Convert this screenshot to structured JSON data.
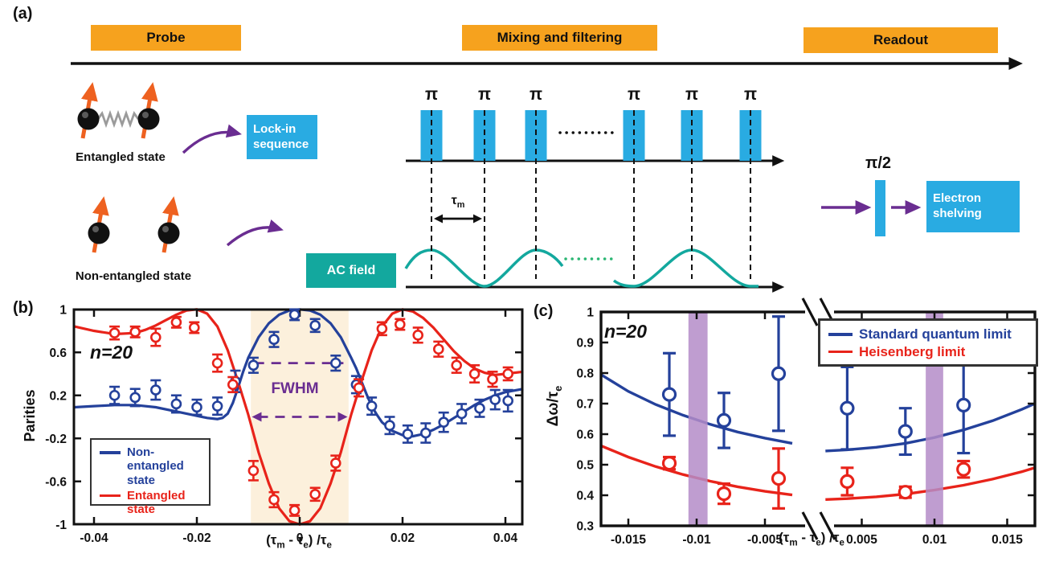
{
  "panel_a": {
    "label": "(a)",
    "stages": [
      "Probe",
      "Mixing and filtering",
      "Readout"
    ],
    "entangled_label": "Entangled state",
    "non_entangled_label": "Non-entangled state",
    "lockin_label": "Lock-in sequence",
    "ac_label": "AC field",
    "electron_label": "Electron shelving",
    "pi": "π",
    "pi_half": "π/2",
    "tau": "τ",
    "tau_sub": "m",
    "colors": {
      "stage_box": "#F6A21E",
      "pulse_blue": "#29ABE2",
      "ac_teal": "#13A89E",
      "arrow_purple": "#6A2D91",
      "spin_orange": "#EE6120",
      "dots_green": "#2BB673"
    }
  },
  "shared_x_axis_label_parts": {
    "p1": "(τ",
    "s1": "m",
    "p2": " - τ",
    "s2": "e",
    "p3": ") /τ",
    "s3": "e"
  },
  "chart_data": [
    {
      "panel": "(b)",
      "type": "line",
      "ylabel": "Parities",
      "annotation": "n=20",
      "grid": false,
      "legend_position": "lower-left",
      "xlim": [
        -0.0438,
        0.0435
      ],
      "ylim": [
        -1,
        1
      ],
      "xticks": [
        -0.04,
        -0.02,
        0,
        0.02,
        0.04
      ],
      "yticks": [
        1,
        0.6,
        0.2,
        -0.2,
        -0.6,
        -1
      ],
      "shaded_region": {
        "x": [
          -0.0095,
          0.0095
        ],
        "color": "#FCF0DC"
      },
      "fwhm": {
        "label": "FWHM",
        "color": "#6A2D91",
        "half_max_line": {
          "y": 0.5,
          "x": [
            -0.0088,
            0.0085
          ]
        },
        "width_arrow": {
          "y": 0,
          "x": [
            -0.0093,
            0.0093
          ]
        }
      },
      "series": [
        {
          "name": "Non-entangled state",
          "color": "#24419B",
          "curve": {
            "x": [
              -0.0438,
              -0.04,
              -0.036,
              -0.032,
              -0.028,
              -0.024,
              -0.02,
              -0.018,
              -0.016,
              -0.015,
              -0.014,
              -0.013,
              -0.012,
              -0.011,
              -0.01,
              -0.008,
              -0.006,
              -0.004,
              -0.002,
              0,
              0.002,
              0.004,
              0.006,
              0.008,
              0.01,
              0.011,
              0.012,
              0.013,
              0.014,
              0.015,
              0.016,
              0.018,
              0.02,
              0.022,
              0.024,
              0.026,
              0.028,
              0.03,
              0.032,
              0.034,
              0.036,
              0.038,
              0.04,
              0.0435
            ],
            "y": [
              0.09,
              0.1,
              0.11,
              0.11,
              0.09,
              0.05,
              0.01,
              -0.01,
              -0.02,
              -0.01,
              0.03,
              0.13,
              0.27,
              0.42,
              0.55,
              0.74,
              0.87,
              0.95,
              0.99,
              1,
              0.99,
              0.95,
              0.87,
              0.74,
              0.55,
              0.45,
              0.33,
              0.21,
              0.1,
              0.02,
              -0.05,
              -0.13,
              -0.17,
              -0.18,
              -0.16,
              -0.12,
              -0.07,
              -0.01,
              0.05,
              0.11,
              0.16,
              0.2,
              0.23,
              0.26
            ]
          },
          "points": {
            "x": [
              -0.036,
              -0.032,
              -0.028,
              -0.024,
              -0.02,
              -0.016,
              -0.0125,
              -0.009,
              -0.005,
              -0.001,
              0.003,
              0.007,
              0.011,
              0.014,
              0.0175,
              0.021,
              0.0245,
              0.028,
              0.0315,
              0.035,
              0.038,
              0.0405
            ],
            "y": [
              0.2,
              0.18,
              0.25,
              0.12,
              0.09,
              0.1,
              0.33,
              0.48,
              0.72,
              0.95,
              0.85,
              0.5,
              0.3,
              0.1,
              -0.08,
              -0.16,
              -0.15,
              -0.05,
              0.03,
              0.08,
              0.16,
              0.15
            ],
            "err": [
              0.08,
              0.08,
              0.09,
              0.08,
              0.07,
              0.08,
              0.1,
              0.07,
              0.07,
              0.05,
              0.06,
              0.07,
              0.08,
              0.08,
              0.08,
              0.08,
              0.09,
              0.09,
              0.09,
              0.08,
              0.09,
              0.1
            ]
          }
        },
        {
          "name": "Entangled state",
          "color": "#E8231A",
          "curve": {
            "x": [
              -0.0438,
              -0.04,
              -0.036,
              -0.032,
              -0.03,
              -0.028,
              -0.026,
              -0.024,
              -0.022,
              -0.02,
              -0.018,
              -0.016,
              -0.014,
              -0.012,
              -0.01,
              -0.008,
              -0.006,
              -0.004,
              -0.002,
              0,
              0.002,
              0.004,
              0.006,
              0.008,
              0.01,
              0.012,
              0.014,
              0.016,
              0.018,
              0.02,
              0.022,
              0.024,
              0.026,
              0.028,
              0.03,
              0.032,
              0.034,
              0.036,
              0.038,
              0.04,
              0.0435
            ],
            "y": [
              0.84,
              0.8,
              0.77,
              0.78,
              0.81,
              0.85,
              0.9,
              0.95,
              0.99,
              1,
              0.96,
              0.84,
              0.62,
              0.33,
              0.02,
              -0.33,
              -0.62,
              -0.85,
              -0.97,
              -1,
              -0.97,
              -0.85,
              -0.62,
              -0.33,
              0.02,
              0.33,
              0.62,
              0.84,
              0.96,
              1,
              0.98,
              0.92,
              0.83,
              0.72,
              0.61,
              0.52,
              0.45,
              0.41,
              0.39,
              0.4,
              0.42
            ]
          },
          "points": {
            "x": [
              -0.036,
              -0.032,
              -0.028,
              -0.024,
              -0.0205,
              -0.016,
              -0.013,
              -0.009,
              -0.005,
              -0.001,
              0.003,
              0.007,
              0.0115,
              0.016,
              0.0195,
              0.023,
              0.027,
              0.0305,
              0.034,
              0.0375,
              0.0405
            ],
            "y": [
              0.78,
              0.79,
              0.74,
              0.88,
              0.83,
              0.5,
              0.3,
              -0.5,
              -0.77,
              -0.87,
              -0.72,
              -0.43,
              0.27,
              0.82,
              0.86,
              0.76,
              0.63,
              0.48,
              0.4,
              0.35,
              0.4
            ],
            "err": [
              0.06,
              0.05,
              0.08,
              0.05,
              0.05,
              0.08,
              0.07,
              0.09,
              0.07,
              0.05,
              0.06,
              0.07,
              0.08,
              0.06,
              0.05,
              0.07,
              0.07,
              0.07,
              0.08,
              0.07,
              0.06
            ]
          }
        }
      ]
    },
    {
      "panel": "(c)",
      "type": "line",
      "ylabel_parts": {
        "main": "Δω/τ",
        "sub": "e"
      },
      "annotation": "n=20",
      "grid": false,
      "legend_position": "upper-right",
      "ylim": [
        0.3,
        1.0
      ],
      "xlim_left": [
        -0.017,
        -0.002
      ],
      "xlim_right": [
        0.002,
        0.0169
      ],
      "axis_break_at_x": 0,
      "xticks": [
        -0.015,
        -0.01,
        -0.005,
        0.005,
        0.01,
        0.015
      ],
      "yticks": [
        0.3,
        0.4,
        0.5,
        0.6,
        0.7,
        0.8,
        0.9,
        1
      ],
      "highlight_bands": {
        "color": "#B48CC8",
        "x": [
          [
            -0.0106,
            -0.0092
          ],
          [
            0.0094,
            0.0106
          ]
        ]
      },
      "series": [
        {
          "name": "Standard quantum limit",
          "color": "#24419B",
          "curve_left": {
            "x": [
              -0.017,
              -0.015,
              -0.013,
              -0.011,
              -0.009,
              -0.007,
              -0.005,
              -0.003
            ],
            "y": [
              0.795,
              0.74,
              0.697,
              0.662,
              0.632,
              0.607,
              0.587,
              0.57
            ]
          },
          "curve_right": {
            "x": [
              0.0025,
              0.004,
              0.006,
              0.008,
              0.01,
              0.012,
              0.014,
              0.016,
              0.0169
            ],
            "y": [
              0.545,
              0.549,
              0.557,
              0.57,
              0.589,
              0.614,
              0.644,
              0.681,
              0.7
            ]
          },
          "points": {
            "x": [
              -0.012,
              -0.008,
              -0.004,
              0.004,
              0.008,
              0.012
            ],
            "y": [
              0.73,
              0.645,
              0.798,
              0.685,
              0.609,
              0.695
            ],
            "err": [
              0.135,
              0.09,
              0.187,
              0.135,
              0.076,
              0.157
            ]
          }
        },
        {
          "name": "Heisenberg limit",
          "color": "#E8231A",
          "curve_left": {
            "x": [
              -0.017,
              -0.015,
              -0.013,
              -0.011,
              -0.009,
              -0.007,
              -0.005,
              -0.003
            ],
            "y": [
              0.562,
              0.525,
              0.494,
              0.468,
              0.446,
              0.428,
              0.413,
              0.401
            ]
          },
          "curve_right": {
            "x": [
              0.0025,
              0.004,
              0.006,
              0.008,
              0.01,
              0.012,
              0.014,
              0.016,
              0.0169
            ],
            "y": [
              0.386,
              0.389,
              0.395,
              0.404,
              0.417,
              0.433,
              0.453,
              0.477,
              0.49
            ]
          },
          "points": {
            "x": [
              -0.012,
              -0.008,
              -0.004,
              0.004,
              0.008,
              0.012
            ],
            "y": [
              0.505,
              0.405,
              0.455,
              0.445,
              0.41,
              0.485
            ],
            "err": [
              0.02,
              0.033,
              0.098,
              0.045,
              0.018,
              0.027
            ]
          }
        }
      ]
    }
  ]
}
